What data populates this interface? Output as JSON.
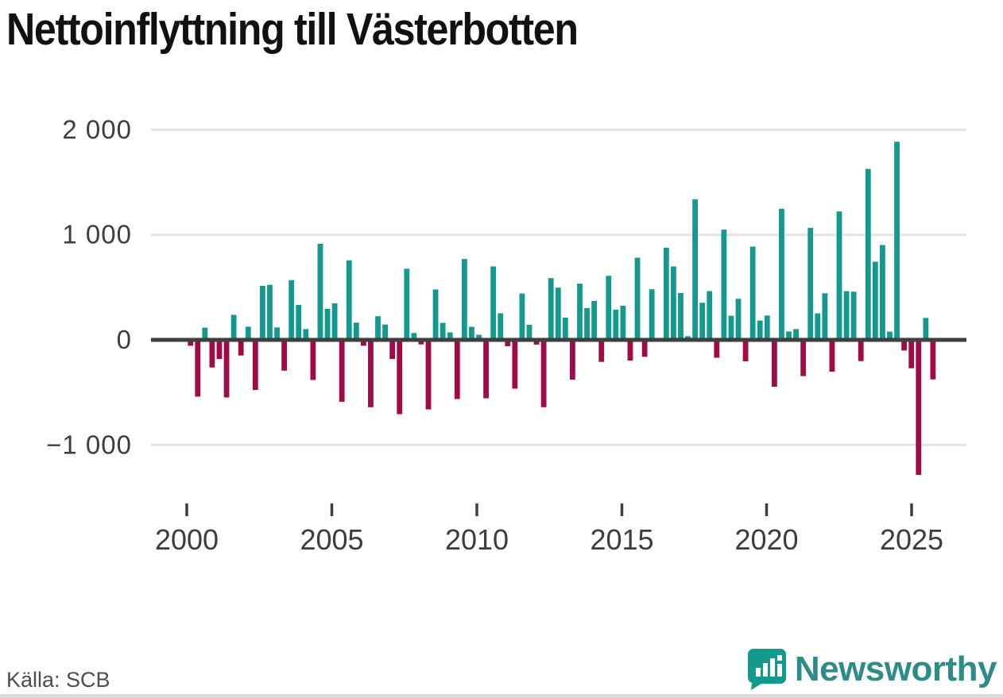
{
  "page": {
    "title": "Nettoinflyttning till Västerbotten",
    "source": "Källa: SCB",
    "brand": "Newsworthy"
  },
  "colors": {
    "positive_bar": "#13998E",
    "negative_bar": "#A00B45",
    "zero_line": "#3F3F3F",
    "gridline": "#E4E4E4",
    "axis_text": "#3D3D3D",
    "brand_teal": "#2E8C88",
    "logo_bg": "#13998E"
  },
  "chart_data": {
    "type": "bar",
    "title": "Nettoinflyttning till Västerbotten",
    "xlabel": "",
    "ylabel": "",
    "grid": "horizontal",
    "legend": "none",
    "frequency": "quarterly",
    "start": "2000 Q1",
    "end": "2025 Q4",
    "ylim": [
      -1450,
      2150
    ],
    "y_ticks": [
      2000,
      1000,
      0,
      -1000
    ],
    "y_tick_labels": [
      "2 000",
      "1 000",
      "0",
      "−1 000"
    ],
    "x_tick_labels": [
      "2000",
      "2005",
      "2010",
      "2015",
      "2020",
      "2025"
    ],
    "series_quarterly": [
      {
        "year": 2000,
        "values": [
          -56,
          -540,
          116,
          -263
        ]
      },
      {
        "year": 2001,
        "values": [
          -182,
          -548,
          238,
          -149
        ]
      },
      {
        "year": 2002,
        "values": [
          126,
          -477,
          514,
          524
        ]
      },
      {
        "year": 2003,
        "values": [
          118,
          -293,
          569,
          333
        ]
      },
      {
        "year": 2004,
        "values": [
          103,
          -381,
          915,
          296
        ]
      },
      {
        "year": 2005,
        "values": [
          348,
          -589,
          757,
          164
        ]
      },
      {
        "year": 2006,
        "values": [
          -56,
          -641,
          225,
          146
        ]
      },
      {
        "year": 2007,
        "values": [
          -182,
          -707,
          677,
          66
        ]
      },
      {
        "year": 2008,
        "values": [
          -43,
          -662,
          480,
          162
        ]
      },
      {
        "year": 2009,
        "values": [
          71,
          -563,
          770,
          124
        ]
      },
      {
        "year": 2010,
        "values": [
          48,
          -556,
          699,
          253
        ]
      },
      {
        "year": 2011,
        "values": [
          -60,
          -464,
          441,
          143
        ]
      },
      {
        "year": 2012,
        "values": [
          -45,
          -641,
          588,
          497
        ]
      },
      {
        "year": 2013,
        "values": [
          212,
          -378,
          535,
          303
        ]
      },
      {
        "year": 2014,
        "values": [
          371,
          -209,
          610,
          288
        ]
      },
      {
        "year": 2015,
        "values": [
          325,
          -197,
          782,
          -161
        ]
      },
      {
        "year": 2016,
        "values": [
          482,
          0,
          878,
          699
        ]
      },
      {
        "year": 2017,
        "values": [
          446,
          35,
          1337,
          353
        ]
      },
      {
        "year": 2018,
        "values": [
          464,
          -170,
          1049,
          229
        ]
      },
      {
        "year": 2019,
        "values": [
          391,
          -204,
          888,
          184
        ]
      },
      {
        "year": 2020,
        "values": [
          232,
          -446,
          1248,
          80
        ]
      },
      {
        "year": 2021,
        "values": [
          103,
          -345,
          1067,
          252
        ]
      },
      {
        "year": 2022,
        "values": [
          444,
          -303,
          1223,
          464
        ]
      },
      {
        "year": 2023,
        "values": [
          459,
          -202,
          1627,
          744
        ]
      },
      {
        "year": 2024,
        "values": [
          903,
          78,
          1886,
          -101
        ]
      },
      {
        "year": 2025,
        "values": [
          -270,
          -1285,
          209,
          -376
        ]
      }
    ]
  }
}
